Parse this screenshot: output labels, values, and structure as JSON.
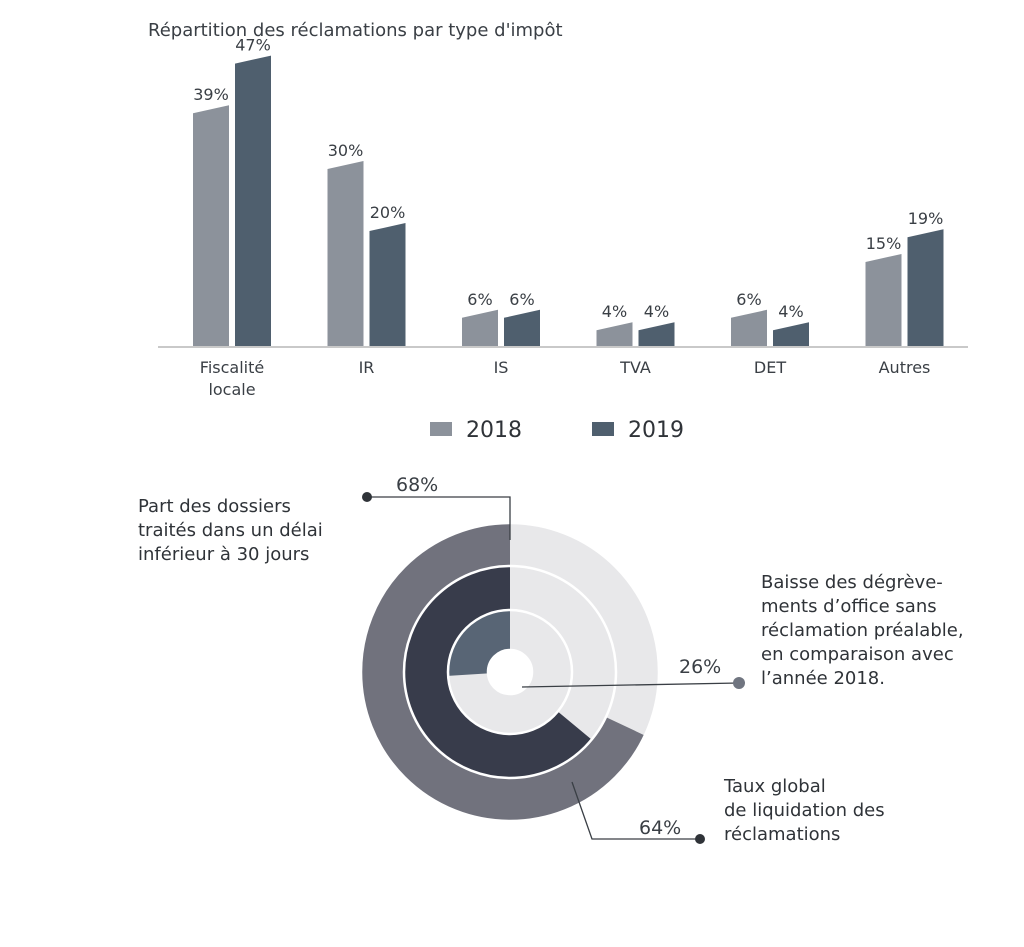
{
  "chart_data": [
    {
      "type": "bar",
      "title": "Répartition des réclamations par type d'impôt",
      "categories": [
        [
          "Fiscalité",
          "locale"
        ],
        [
          "IR"
        ],
        [
          "IS"
        ],
        [
          "TVA"
        ],
        [
          "DET"
        ],
        [
          "Autres"
        ]
      ],
      "series": [
        {
          "name": "2018",
          "values": [
            39,
            30,
            6,
            4,
            6,
            15
          ],
          "labels": [
            "39%",
            "30%",
            "6%",
            "4%",
            "6%",
            "15%"
          ],
          "color": "#8c929b"
        },
        {
          "name": "2019",
          "values": [
            47,
            20,
            6,
            4,
            4,
            19
          ],
          "labels": [
            "47%",
            "20%",
            "6%",
            "4%",
            "4%",
            "19%"
          ],
          "color": "#4f5f6e"
        }
      ],
      "ylim": [
        0,
        50
      ],
      "grid": false,
      "legend": "bottom"
    },
    {
      "type": "pie",
      "variant": "nested-donut",
      "rings": [
        {
          "value": 68,
          "label": "68%",
          "color": "#71727d",
          "track": "#e8e8ea",
          "annotation": [
            "Part des dossiers",
            "traités dans un délai",
            "inférieur à 30 jours"
          ]
        },
        {
          "value": 64,
          "label": "64%",
          "color": "#383c4b",
          "track": "#e8e8ea",
          "annotation": [
            "Taux global",
            "de liquidation des",
            "réclamations"
          ]
        },
        {
          "value": 26,
          "label": "26%",
          "color": "#586575",
          "track": "#e8e8ea",
          "annotation": [
            "Baisse des dégrève-",
            "ments d’office sans",
            "réclamation préalable,",
            "en comparaison avec",
            "l’année 2018."
          ]
        }
      ]
    }
  ]
}
